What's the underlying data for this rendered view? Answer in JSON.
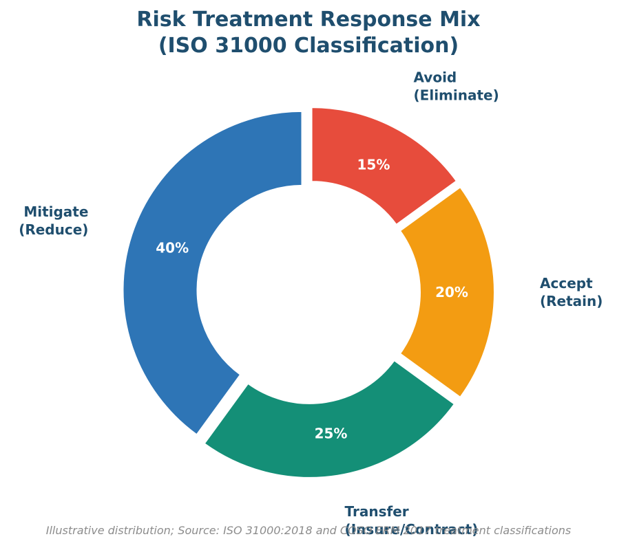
{
  "chart_data": {
    "type": "pie",
    "variant": "donut",
    "title": "Risk Treatment Response Mix\n(ISO 31000 Classification)",
    "title_lines": [
      "Risk Treatment Response Mix",
      "(ISO 31000 Classification)"
    ],
    "slices": [
      {
        "label_lines": [
          "Avoid",
          "(Eliminate)"
        ],
        "value": 15,
        "value_label": "15%",
        "color": "#e74c3c"
      },
      {
        "label_lines": [
          "Accept",
          "(Retain)"
        ],
        "value": 20,
        "value_label": "20%",
        "color": "#f39c12"
      },
      {
        "label_lines": [
          "Transfer",
          "(Insure/Contract)"
        ],
        "value": 25,
        "value_label": "25%",
        "color": "#148f77"
      },
      {
        "label_lines": [
          "Mitigate",
          "(Reduce)"
        ],
        "value": 40,
        "value_label": "40%",
        "color": "#2e75b6"
      }
    ],
    "start": "top",
    "direction": "clockwise",
    "slices_exploded": true,
    "label_color": "#1f4e6e",
    "value_label_color": "#ffffff"
  },
  "footnote": "Illustrative distribution; Source: ISO 31000:2018 and COSO ERM 2017 treatment classifications"
}
